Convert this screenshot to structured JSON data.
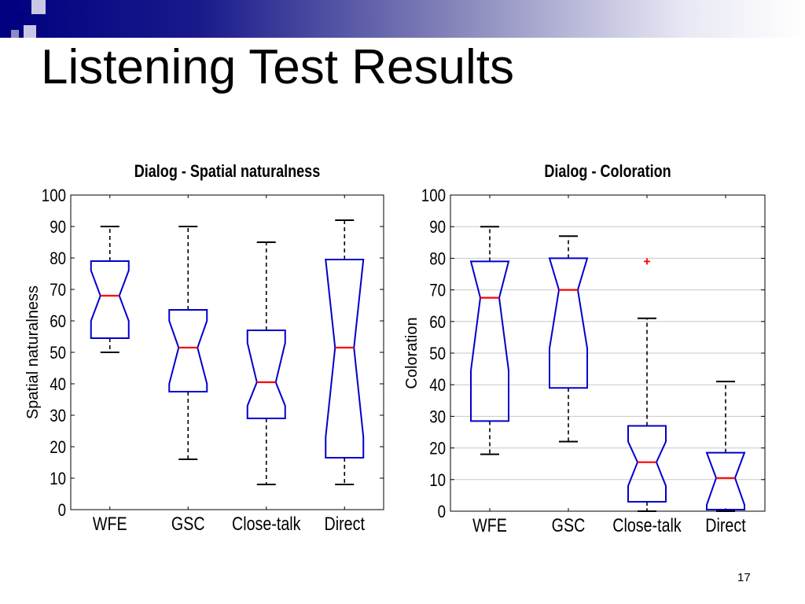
{
  "slide": {
    "title": "Listening Test Results",
    "page_number": "17",
    "colors": {
      "band_dark": "#000080",
      "box_stroke": "#0000cc",
      "median": "#ff0000",
      "outlier": "#ff0000"
    }
  },
  "chart_data": [
    {
      "type": "boxplot",
      "title": "Dialog - Spatial naturalness",
      "xlabel": "",
      "ylabel": "Spatial naturalness",
      "ylim": [
        0,
        100
      ],
      "yticks": [
        0,
        10,
        20,
        30,
        40,
        50,
        60,
        70,
        80,
        90,
        100
      ],
      "categories": [
        "WFE",
        "GSC",
        "Close-talk",
        "Direct"
      ],
      "notched": true,
      "grid": false,
      "boxes": [
        {
          "name": "WFE",
          "whisker_low": 50,
          "q1": 54.5,
          "notch_low": 60,
          "median": 68,
          "notch_high": 76,
          "q3": 79,
          "whisker_high": 90,
          "outliers": []
        },
        {
          "name": "GSC",
          "whisker_low": 16,
          "q1": 37.5,
          "notch_low": 40,
          "median": 51.5,
          "notch_high": 60,
          "q3": 63.5,
          "whisker_high": 90,
          "outliers": []
        },
        {
          "name": "Close-talk",
          "whisker_low": 8,
          "q1": 29,
          "notch_low": 33,
          "median": 40.5,
          "notch_high": 53,
          "q3": 57,
          "whisker_high": 85,
          "outliers": []
        },
        {
          "name": "Direct",
          "whisker_low": 8,
          "q1": 16.5,
          "notch_low": 23,
          "median": 51.5,
          "notch_high": 79.5,
          "q3": 79.5,
          "whisker_high": 92,
          "outliers": []
        }
      ]
    },
    {
      "type": "boxplot",
      "title": "Dialog - Coloration",
      "xlabel": "",
      "ylabel": "Coloration",
      "ylim": [
        0,
        100
      ],
      "yticks": [
        0,
        10,
        20,
        30,
        40,
        50,
        60,
        70,
        80,
        90,
        100
      ],
      "categories": [
        "WFE",
        "GSC",
        "Close-talk",
        "Direct"
      ],
      "notched": true,
      "grid": true,
      "boxes": [
        {
          "name": "WFE",
          "whisker_low": 18,
          "q1": 28.5,
          "notch_low": 44.5,
          "median": 67.5,
          "notch_high": 79,
          "q3": 79,
          "whisker_high": 90,
          "outliers": []
        },
        {
          "name": "GSC",
          "whisker_low": 22,
          "q1": 39,
          "notch_low": 51.5,
          "median": 70,
          "notch_high": 80,
          "q3": 80,
          "whisker_high": 87,
          "outliers": []
        },
        {
          "name": "Close-talk",
          "whisker_low": 0,
          "q1": 3,
          "notch_low": 8,
          "median": 15.5,
          "notch_high": 22,
          "q3": 27,
          "whisker_high": 61,
          "outliers": [
            79
          ]
        },
        {
          "name": "Direct",
          "whisker_low": 0,
          "q1": 0.5,
          "notch_low": 2,
          "median": 10.5,
          "notch_high": 18.5,
          "q3": 18.5,
          "whisker_high": 41,
          "outliers": []
        }
      ]
    }
  ]
}
